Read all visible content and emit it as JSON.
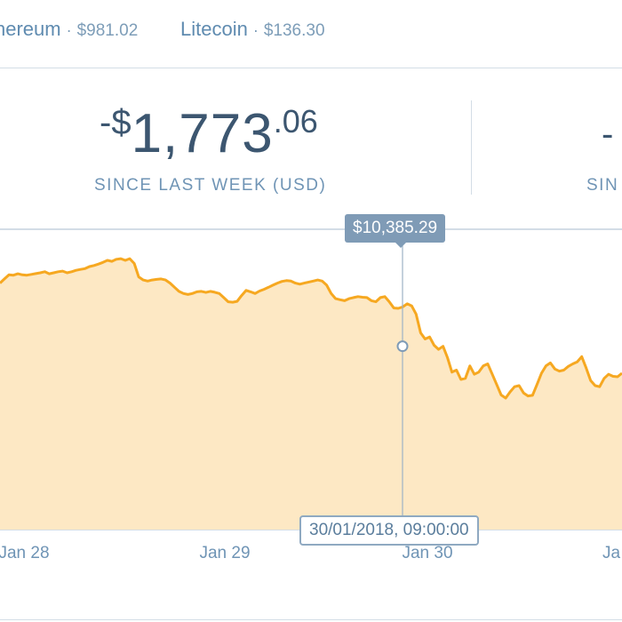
{
  "tickers": [
    {
      "name": "hereum",
      "sep": "·",
      "price": "$981.02"
    },
    {
      "name": "Litecoin",
      "sep": "·",
      "price": "$136.30"
    }
  ],
  "stats": {
    "primary": {
      "prefix": "-$",
      "main": "1,773",
      "cents": ".06",
      "label": "SINCE LAST WEEK (USD)"
    },
    "secondary": {
      "value": "-",
      "label": "SIN"
    }
  },
  "chart": {
    "hover_price": "$10,385.29",
    "hover_time": "30/01/2018, 09:00:00",
    "x_ticks": [
      "Jan 28",
      "Jan 29",
      "Jan 30",
      "Ja"
    ]
  },
  "colors": {
    "line": "#f6a821",
    "fill": "#fde8c4",
    "text_dark": "#3c5670",
    "text_muted": "#6f94b5",
    "tooltip_bg": "#7f9bb6",
    "divider": "#d3dde6"
  },
  "chart_data": {
    "type": "area",
    "title": "",
    "xlabel": "",
    "ylabel": "",
    "ylim": [
      9500,
      10950
    ],
    "x_ticks": [
      "Jan 28",
      "Jan 29",
      "Jan 30",
      "Ja"
    ],
    "highlight": {
      "x": "30/01/2018, 09:00:00",
      "y": 10385.29
    },
    "series": [
      {
        "values": [
          10690,
          10710,
          10730,
          10728,
          10735,
          10730,
          10728,
          10732,
          10736,
          10740,
          10745,
          10735,
          10740,
          10745,
          10748,
          10740,
          10745,
          10752,
          10756,
          10760,
          10770,
          10775,
          10782,
          10790,
          10800,
          10795,
          10805,
          10808,
          10800,
          10808,
          10785,
          10720,
          10705,
          10700,
          10705,
          10708,
          10710,
          10705,
          10690,
          10670,
          10650,
          10640,
          10635,
          10640,
          10648,
          10650,
          10645,
          10650,
          10646,
          10640,
          10620,
          10600,
          10598,
          10602,
          10630,
          10655,
          10648,
          10640,
          10652,
          10660,
          10670,
          10680,
          10690,
          10698,
          10702,
          10700,
          10690,
          10685,
          10690,
          10695,
          10700,
          10705,
          10700,
          10680,
          10640,
          10615,
          10610,
          10605,
          10615,
          10620,
          10625,
          10622,
          10620,
          10605,
          10600,
          10620,
          10625,
          10600,
          10570,
          10568,
          10575,
          10590,
          10580,
          10540,
          10450,
          10420,
          10430,
          10390,
          10370,
          10385,
          10330,
          10260,
          10270,
          10225,
          10230,
          10290,
          10250,
          10260,
          10290,
          10300,
          10250,
          10200,
          10150,
          10135,
          10165,
          10190,
          10195,
          10160,
          10145,
          10148,
          10200,
          10255,
          10290,
          10305,
          10275,
          10265,
          10270,
          10288,
          10300,
          10310,
          10335,
          10280,
          10220,
          10195,
          10190,
          10230,
          10250,
          10240,
          10238,
          10255
        ]
      }
    ]
  }
}
